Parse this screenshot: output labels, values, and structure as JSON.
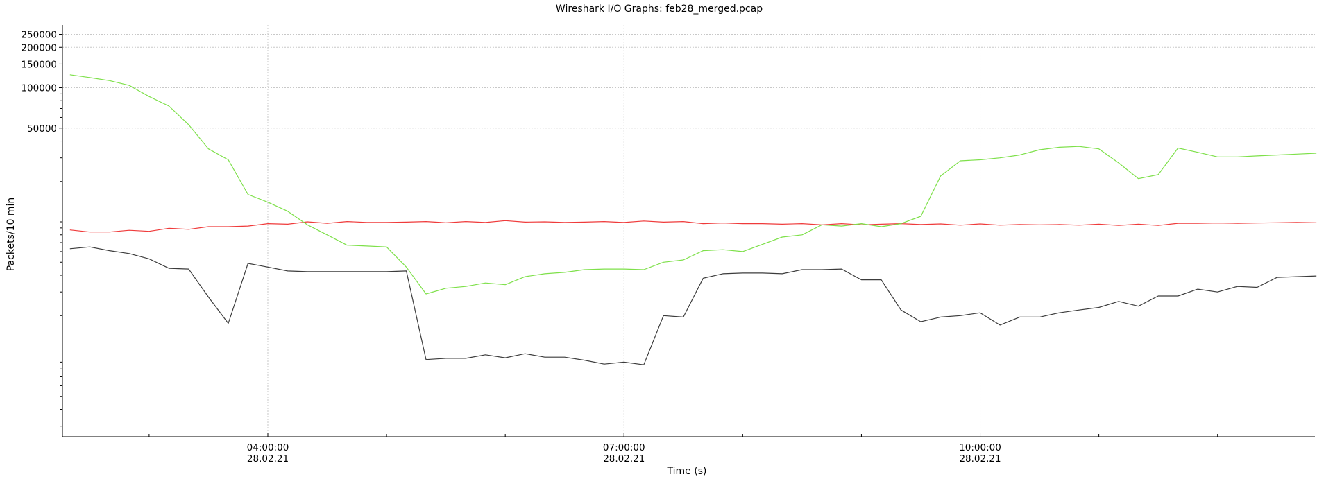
{
  "chart_data": {
    "type": "line",
    "title": "Wireshark I/O Graphs: feb28_merged.pcap",
    "xlabel": "Time (s)",
    "ylabel": "Packets/10 min",
    "y_scale": "log",
    "y_tick_labels": [
      "50000",
      "100000",
      "150000",
      "200000",
      "250000"
    ],
    "x_tick_labels": [
      {
        "time": "04:00:00",
        "date": "28.02.21"
      },
      {
        "time": "07:00:00",
        "date": "28.02.21"
      },
      {
        "time": "10:00:00",
        "date": "28.02.21"
      }
    ],
    "x_unit": "hours since midnight 28.02.21",
    "xlim": [
      2.27,
      12.82
    ],
    "ylim": [
      250,
      280000
    ],
    "grid": true,
    "legend": "none",
    "series": [
      {
        "color": "#ef3b3b",
        "x": [
          2.333,
          2.5,
          2.667,
          2.833,
          3.0,
          3.167,
          3.333,
          3.5,
          3.667,
          3.833,
          4.0,
          4.167,
          4.333,
          4.5,
          4.667,
          4.833,
          5.0,
          5.167,
          5.333,
          5.5,
          5.667,
          5.833,
          6.0,
          6.167,
          6.333,
          6.5,
          6.667,
          6.833,
          7.0,
          7.167,
          7.333,
          7.5,
          7.667,
          7.833,
          8.0,
          8.167,
          8.333,
          8.5,
          8.667,
          8.833,
          9.0,
          9.167,
          9.333,
          9.5,
          9.667,
          9.833,
          10.0,
          10.167,
          10.333,
          10.5,
          10.667,
          10.833,
          11.0,
          11.167,
          11.333,
          11.5,
          11.667,
          11.833,
          12.0,
          12.167,
          12.333,
          12.5,
          12.667,
          12.833
        ],
        "values": [
          8700,
          8400,
          8400,
          8650,
          8500,
          8950,
          8800,
          9200,
          9200,
          9300,
          9700,
          9600,
          10000,
          9750,
          10050,
          9900,
          9900,
          9950,
          10050,
          9850,
          10050,
          9900,
          10200,
          9950,
          10000,
          9900,
          9950,
          10050,
          9900,
          10150,
          9950,
          10050,
          9700,
          9800,
          9700,
          9700,
          9600,
          9700,
          9500,
          9700,
          9500,
          9600,
          9700,
          9550,
          9650,
          9450,
          9650,
          9450,
          9550,
          9500,
          9550,
          9450,
          9600,
          9400,
          9600,
          9400,
          9750,
          9750,
          9800,
          9750,
          9800,
          9850,
          9900,
          9850
        ]
      },
      {
        "color": "#7ee04a",
        "x": [
          2.333,
          2.5,
          2.667,
          2.833,
          3.0,
          3.167,
          3.333,
          3.5,
          3.667,
          3.833,
          4.0,
          4.167,
          4.333,
          4.5,
          4.667,
          4.833,
          5.0,
          5.167,
          5.333,
          5.5,
          5.667,
          5.833,
          6.0,
          6.167,
          6.333,
          6.5,
          6.667,
          6.833,
          7.0,
          7.167,
          7.333,
          7.5,
          7.667,
          7.833,
          8.0,
          8.167,
          8.333,
          8.5,
          8.667,
          8.833,
          9.0,
          9.167,
          9.333,
          9.5,
          9.667,
          9.833,
          10.0,
          10.167,
          10.333,
          10.5,
          10.667,
          10.833,
          11.0,
          11.167,
          11.333,
          11.5,
          11.667,
          11.833,
          12.0,
          12.167,
          12.333,
          12.5,
          12.667,
          12.833
        ],
        "values": [
          125000,
          119000,
          113000,
          104000,
          86000,
          73000,
          53000,
          35000,
          29000,
          16000,
          14000,
          12000,
          9500,
          8000,
          6700,
          6600,
          6500,
          4600,
          2900,
          3200,
          3300,
          3500,
          3400,
          3900,
          4100,
          4200,
          4400,
          4450,
          4450,
          4400,
          5000,
          5200,
          6100,
          6200,
          6000,
          6800,
          7700,
          8000,
          9500,
          9300,
          9700,
          9200,
          9700,
          11000,
          22000,
          28500,
          29000,
          30000,
          31500,
          34500,
          36000,
          36500,
          35000,
          27500,
          21000,
          22500,
          35500,
          33000,
          30500,
          30500,
          31000,
          31500,
          32000,
          32500
        ]
      },
      {
        "color": "#3c3c3c",
        "x": [
          2.333,
          2.5,
          2.667,
          2.833,
          3.0,
          3.167,
          3.333,
          3.5,
          3.667,
          3.833,
          4.0,
          4.167,
          4.333,
          4.5,
          4.667,
          4.833,
          5.0,
          5.167,
          5.333,
          5.5,
          5.667,
          5.833,
          6.0,
          6.167,
          6.333,
          6.5,
          6.667,
          6.833,
          7.0,
          7.167,
          7.333,
          7.5,
          7.667,
          7.833,
          8.0,
          8.167,
          8.333,
          8.5,
          8.667,
          8.833,
          9.0,
          9.167,
          9.333,
          9.5,
          9.667,
          9.833,
          10.0,
          10.167,
          10.333,
          10.5,
          10.667,
          10.833,
          11.0,
          11.167,
          11.333,
          11.5,
          11.667,
          11.833,
          12.0,
          12.167,
          12.333,
          12.5,
          12.667,
          12.833
        ],
        "values": [
          6300,
          6500,
          6100,
          5800,
          5300,
          4500,
          4450,
          2750,
          1750,
          4900,
          4600,
          4300,
          4250,
          4250,
          4250,
          4250,
          4250,
          4300,
          940,
          960,
          960,
          1020,
          970,
          1040,
          980,
          980,
          930,
          870,
          900,
          860,
          2000,
          1950,
          3800,
          4100,
          4150,
          4150,
          4100,
          4400,
          4400,
          4450,
          3700,
          3700,
          2200,
          1800,
          1950,
          2000,
          2100,
          1700,
          1950,
          1950,
          2100,
          2200,
          2300,
          2550,
          2350,
          2800,
          2800,
          3150,
          3000,
          3300,
          3250,
          3850,
          3900,
          3950
        ]
      }
    ]
  }
}
